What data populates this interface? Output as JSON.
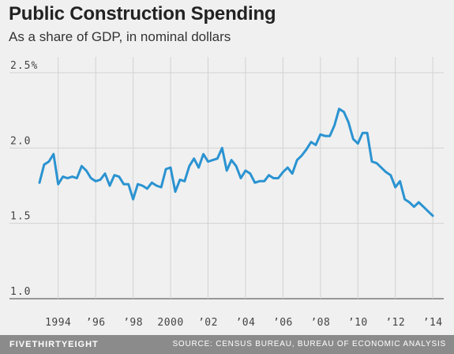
{
  "chart_data": {
    "type": "line",
    "title": "Public Construction Spending",
    "subtitle": "As a share of GDP, in nominal dollars",
    "xlabel": "",
    "ylabel": "",
    "ylim": [
      1.0,
      2.5
    ],
    "xlim": [
      1993.0,
      2014.5
    ],
    "yticks": [
      1.0,
      1.5,
      2.0,
      2.5
    ],
    "ytick_labels": [
      "1.0",
      "1.5",
      "2.0",
      "2.5%"
    ],
    "xticks": [
      1994,
      1996,
      1998,
      2000,
      2002,
      2004,
      2006,
      2008,
      2010,
      2012,
      2014
    ],
    "xtick_labels": [
      "1994",
      "’96",
      "’98",
      "2000",
      "’02",
      "’04",
      "’06",
      "’08",
      "’10",
      "’12",
      "’14"
    ],
    "grid": true,
    "line_color": "#2b93d1",
    "series": [
      {
        "name": "",
        "x": [
          1993.0,
          1993.25,
          1993.5,
          1993.75,
          1994.0,
          1994.25,
          1994.5,
          1994.75,
          1995.0,
          1995.25,
          1995.5,
          1995.75,
          1996.0,
          1996.25,
          1996.5,
          1996.75,
          1997.0,
          1997.25,
          1997.5,
          1997.75,
          1998.0,
          1998.25,
          1998.5,
          1998.75,
          1999.0,
          1999.25,
          1999.5,
          1999.75,
          2000.0,
          2000.25,
          2000.5,
          2000.75,
          2001.0,
          2001.25,
          2001.5,
          2001.75,
          2002.0,
          2002.25,
          2002.5,
          2002.75,
          2003.0,
          2003.25,
          2003.5,
          2003.75,
          2004.0,
          2004.25,
          2004.5,
          2004.75,
          2005.0,
          2005.25,
          2005.5,
          2005.75,
          2006.0,
          2006.25,
          2006.5,
          2006.75,
          2007.0,
          2007.25,
          2007.5,
          2007.75,
          2008.0,
          2008.25,
          2008.5,
          2008.75,
          2009.0,
          2009.25,
          2009.5,
          2009.75,
          2010.0,
          2010.25,
          2010.5,
          2010.75,
          2011.0,
          2011.25,
          2011.5,
          2011.75,
          2012.0,
          2012.25,
          2012.5,
          2012.75,
          2013.0,
          2013.25,
          2013.5,
          2013.75,
          2014.0
        ],
        "values": [
          1.77,
          1.89,
          1.91,
          1.96,
          1.76,
          1.81,
          1.8,
          1.81,
          1.8,
          1.88,
          1.85,
          1.8,
          1.78,
          1.79,
          1.83,
          1.75,
          1.82,
          1.81,
          1.76,
          1.76,
          1.66,
          1.76,
          1.75,
          1.73,
          1.77,
          1.75,
          1.74,
          1.86,
          1.87,
          1.71,
          1.79,
          1.78,
          1.88,
          1.93,
          1.87,
          1.96,
          1.91,
          1.92,
          1.93,
          2.0,
          1.85,
          1.92,
          1.88,
          1.8,
          1.85,
          1.83,
          1.77,
          1.78,
          1.78,
          1.82,
          1.8,
          1.8,
          1.84,
          1.87,
          1.83,
          1.92,
          1.95,
          1.99,
          2.04,
          2.02,
          2.09,
          2.08,
          2.08,
          2.15,
          2.26,
          2.24,
          2.17,
          2.06,
          2.03,
          2.1,
          2.1,
          1.91,
          1.9,
          1.87,
          1.84,
          1.82,
          1.74,
          1.78,
          1.66,
          1.64,
          1.61,
          1.64,
          1.61,
          1.58,
          1.55
        ]
      }
    ]
  },
  "footer": {
    "brand": "FIVETHIRTYEIGHT",
    "source": "SOURCE: CENSUS BUREAU, BUREAU OF ECONOMIC ANALYSIS"
  }
}
